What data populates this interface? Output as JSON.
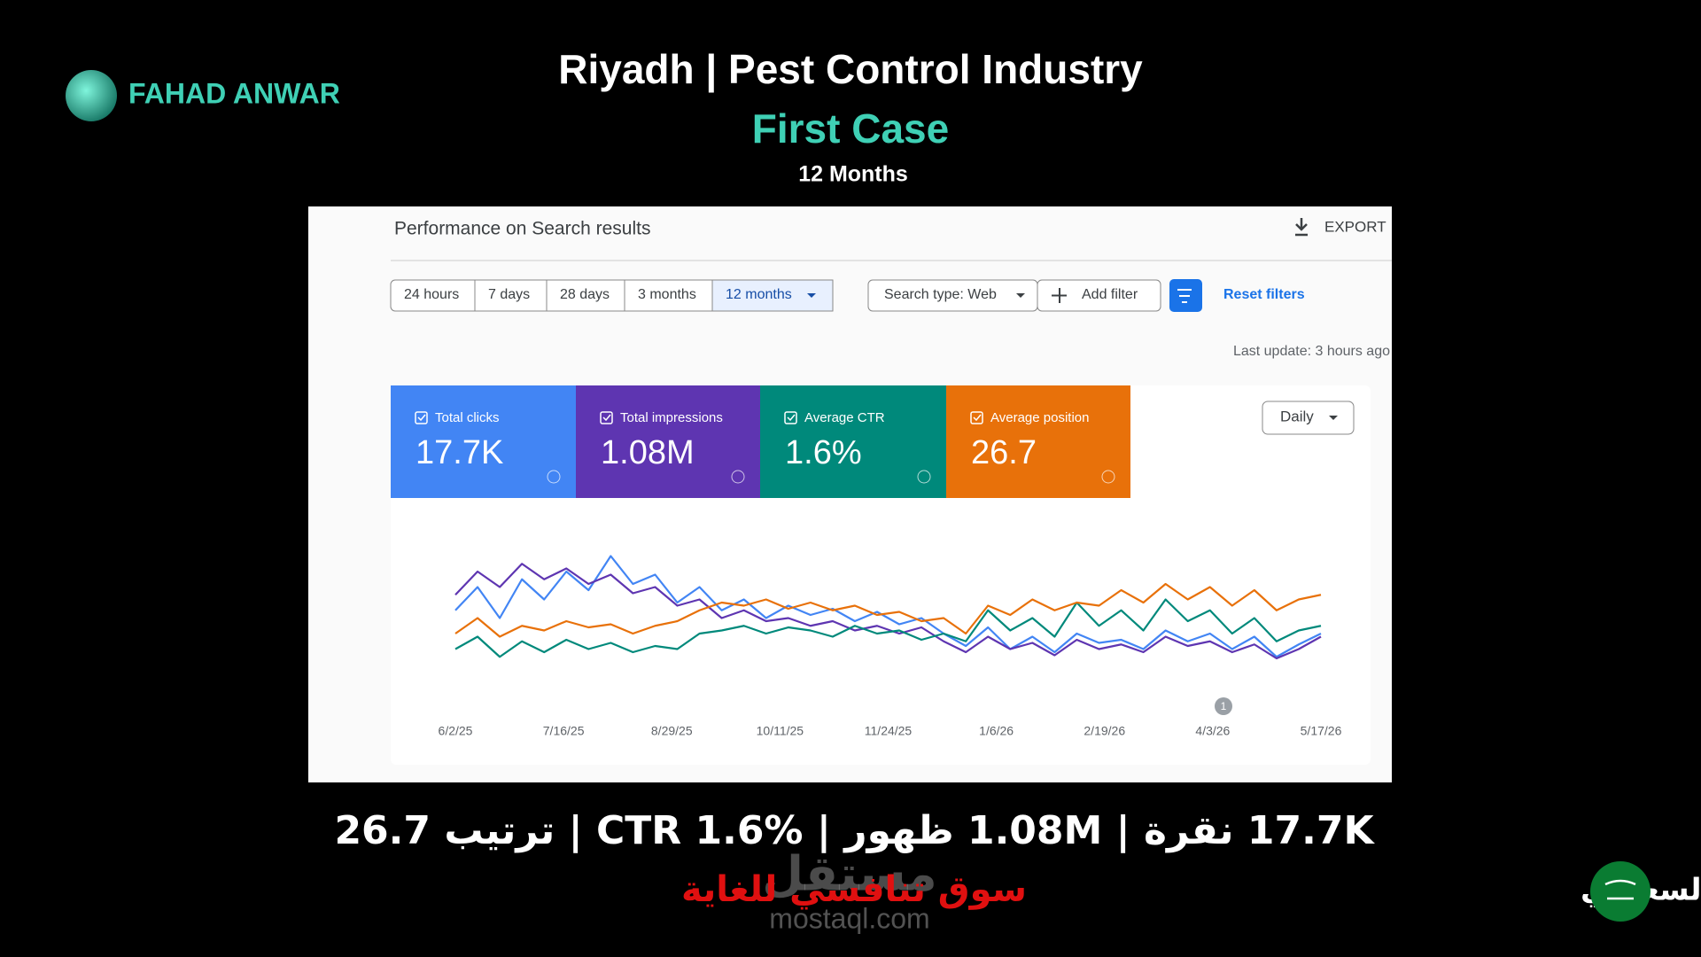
{
  "header": {
    "brand": "FAHAD ANWAR",
    "title": "Riyadh | Pest Control Industry",
    "subtitle": "First Case",
    "period": "12 Months"
  },
  "panel": {
    "title": "Performance on Search results",
    "export": "EXPORT",
    "ranges": [
      "24 hours",
      "7 days",
      "28 days",
      "3 months",
      "12 months"
    ],
    "selected_range": "12 months",
    "search_type": "Search type: Web",
    "add_filter": "Add filter",
    "reset": "Reset filters",
    "last_update": "Last update: 3 hours ago",
    "interval": "Daily",
    "metrics": [
      {
        "label": "Total clicks",
        "value": "17.7K"
      },
      {
        "label": "Total impressions",
        "value": "1.08M"
      },
      {
        "label": "Average CTR",
        "value": "1.6%"
      },
      {
        "label": "Average position",
        "value": "26.7"
      }
    ]
  },
  "chart_data": {
    "type": "line",
    "ylim": [
      0,
      100
    ],
    "annotation": "1",
    "x_labels": [
      "6/2/25",
      "7/16/25",
      "8/29/25",
      "10/11/25",
      "11/24/25",
      "1/6/26",
      "2/19/26",
      "4/3/26",
      "5/17/26"
    ],
    "series": [
      {
        "name": "Total clicks",
        "color": "#4285f4",
        "values": [
          55,
          70,
          50,
          75,
          62,
          80,
          68,
          90,
          72,
          78,
          60,
          70,
          55,
          62,
          50,
          58,
          52,
          56,
          48,
          54,
          46,
          50,
          40,
          32,
          44,
          30,
          38,
          28,
          40,
          34,
          36,
          30,
          42,
          35,
          40,
          30,
          38,
          25,
          33,
          40
        ]
      },
      {
        "name": "Total impressions",
        "color": "#5e35b1",
        "values": [
          65,
          80,
          70,
          85,
          75,
          82,
          72,
          78,
          66,
          70,
          58,
          62,
          50,
          55,
          48,
          50,
          45,
          48,
          42,
          45,
          40,
          44,
          35,
          28,
          38,
          30,
          34,
          26,
          36,
          30,
          33,
          28,
          38,
          32,
          35,
          28,
          33,
          24,
          30,
          38
        ]
      },
      {
        "name": "Average CTR",
        "color": "#00897b",
        "values": [
          30,
          38,
          25,
          35,
          28,
          36,
          30,
          34,
          28,
          32,
          30,
          40,
          42,
          45,
          40,
          44,
          42,
          38,
          45,
          40,
          42,
          36,
          40,
          35,
          55,
          42,
          50,
          38,
          60,
          45,
          55,
          42,
          62,
          48,
          55,
          40,
          50,
          35,
          42,
          45
        ]
      },
      {
        "name": "Average position",
        "color": "#e8710a",
        "values": [
          40,
          50,
          38,
          45,
          42,
          48,
          44,
          46,
          40,
          45,
          48,
          55,
          60,
          58,
          62,
          56,
          60,
          55,
          58,
          52,
          54,
          48,
          50,
          40,
          58,
          52,
          62,
          55,
          60,
          58,
          68,
          60,
          72,
          62,
          70,
          58,
          68,
          55,
          62,
          65
        ]
      }
    ]
  },
  "footer": {
    "summary": "17.7K نقرة | 1.08M ظهور | CTR 1.6% | ترتيب 26.7",
    "tagline": "سوق تنافسي للغاية",
    "watermark": "mostaql.com",
    "watermark_ar": "مستقل",
    "market": "السوق السعودي"
  }
}
